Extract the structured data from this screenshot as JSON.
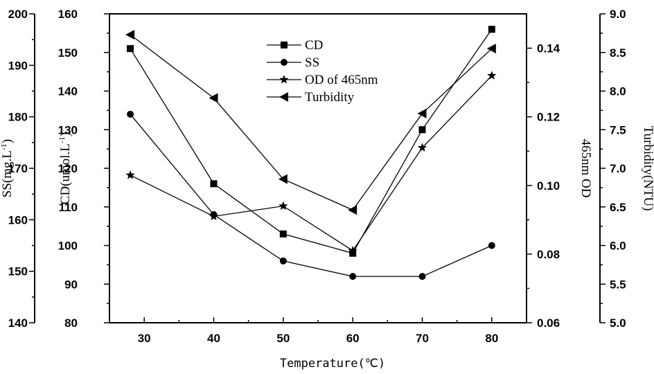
{
  "chart_data": {
    "type": "line",
    "xlabel": "Temperature(℃)",
    "x": [
      28,
      40,
      50,
      60,
      70,
      80
    ],
    "xlim": [
      25,
      85
    ],
    "xticks": [
      30,
      40,
      50,
      60,
      70,
      80
    ],
    "axes": [
      {
        "id": "cd",
        "label": "CD(umol.L",
        "label_sup": "-1",
        "label_end": ")",
        "ylim": [
          80,
          160
        ],
        "ticks": [
          80,
          90,
          100,
          110,
          120,
          130,
          140,
          150,
          160
        ],
        "tick_labels": [
          "80",
          "90",
          "100",
          "110",
          "120",
          "130",
          "140",
          "150",
          "160"
        ]
      },
      {
        "id": "ss",
        "label": "SS(mg.L",
        "label_sup": "-1",
        "label_end": ")",
        "ylim": [
          140,
          200
        ],
        "ticks": [
          140,
          150,
          160,
          170,
          180,
          190,
          200
        ],
        "tick_labels": [
          "140",
          "150",
          "160",
          "170",
          "180",
          "190",
          "200"
        ]
      },
      {
        "id": "od",
        "label": "465nm OD",
        "ylim": [
          0.06,
          0.15
        ],
        "ticks": [
          0.06,
          0.08,
          0.1,
          0.12,
          0.14
        ],
        "tick_labels": [
          "0.06",
          "0.08",
          "0.10",
          "0.12",
          "0.14"
        ]
      },
      {
        "id": "turb",
        "label": "Turbidity(NTU)",
        "ylim": [
          5.0,
          9.0
        ],
        "ticks": [
          5.0,
          5.5,
          6.0,
          6.5,
          7.0,
          7.5,
          8.0,
          8.5,
          9.0
        ],
        "tick_labels": [
          "5.0",
          "5.5",
          "6.0",
          "6.5",
          "7.0",
          "7.5",
          "8.0",
          "8.5",
          "9.0"
        ]
      }
    ],
    "series": [
      {
        "name": "CD",
        "axis": "cd",
        "marker": "square",
        "values": [
          151,
          116,
          103,
          98,
          130,
          156
        ]
      },
      {
        "name": "SS",
        "axis": "ss",
        "marker": "circle",
        "values": [
          180.5,
          161,
          152,
          149,
          149,
          155
        ]
      },
      {
        "name": "OD of 465nm",
        "axis": "od",
        "marker": "star",
        "values": [
          0.103,
          0.091,
          0.094,
          0.081,
          0.111,
          0.132
        ]
      },
      {
        "name": "Turbidity",
        "axis": "turb",
        "marker": "triangle-left",
        "values": [
          8.73,
          7.91,
          6.86,
          6.46,
          7.71,
          8.55
        ]
      }
    ],
    "legend_position": "top-center"
  }
}
